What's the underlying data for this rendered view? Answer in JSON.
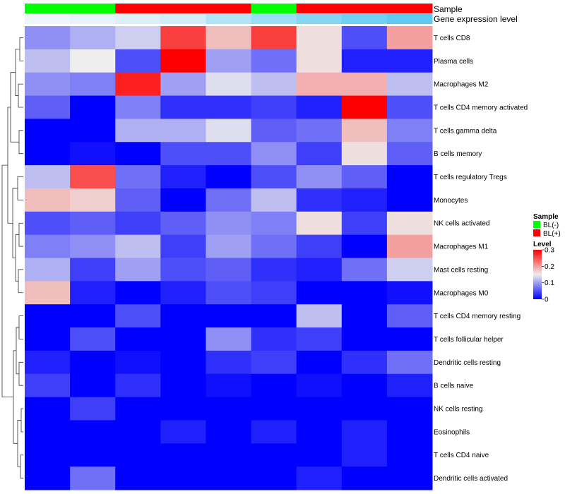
{
  "chart_data": {
    "type": "heatmap",
    "annotation_titles": {
      "sample": "Sample",
      "gene_expression": "Gene expression level"
    },
    "sample_groups": [
      "BL(-)",
      "BL(-)",
      "BL(+)",
      "BL(+)",
      "BL(+)",
      "BL(-)",
      "BL(+)",
      "BL(+)",
      "BL(+)"
    ],
    "gene_expression_levels": [
      0.0,
      0.05,
      0.12,
      0.2,
      0.4,
      0.55,
      0.7,
      0.82,
      0.95
    ],
    "rows": [
      "T cells CD8",
      "Plasma cells",
      "Macrophages M2",
      "T cells CD4 memory activated",
      "T cells gamma delta",
      "B cells memory",
      "T cells regulatory  Tregs",
      "Monocytes",
      "NK cells activated",
      "Macrophages M1",
      "Mast cells resting",
      "Macrophages M0",
      "T cells CD4 memory resting",
      "T cells follicular helper",
      "Dendritic cells resting",
      "B cells naive",
      "NK cells resting",
      "Eosinophils",
      "T cells CD4 naive",
      "Dendritic cells activated"
    ],
    "values": [
      [
        0.09,
        0.11,
        0.13,
        0.26,
        0.18,
        0.26,
        0.16,
        0.05,
        0.2
      ],
      [
        0.12,
        0.15,
        0.05,
        0.3,
        0.1,
        0.07,
        0.16,
        0.02,
        0.02
      ],
      [
        0.09,
        0.08,
        0.28,
        0.1,
        0.14,
        0.12,
        0.19,
        0.19,
        0.12
      ],
      [
        0.06,
        0.0,
        0.08,
        0.03,
        0.03,
        0.04,
        0.02,
        0.3,
        0.05
      ],
      [
        0.0,
        0.0,
        0.11,
        0.11,
        0.14,
        0.06,
        0.07,
        0.18,
        0.08
      ],
      [
        0.0,
        0.01,
        0.0,
        0.05,
        0.05,
        0.09,
        0.04,
        0.16,
        0.06
      ],
      [
        0.12,
        0.25,
        0.07,
        0.02,
        0.0,
        0.05,
        0.09,
        0.06,
        0.0
      ],
      [
        0.18,
        0.17,
        0.06,
        0.0,
        0.07,
        0.12,
        0.03,
        0.02,
        0.0
      ],
      [
        0.05,
        0.06,
        0.04,
        0.06,
        0.09,
        0.08,
        0.16,
        0.04,
        0.16
      ],
      [
        0.08,
        0.09,
        0.12,
        0.04,
        0.1,
        0.07,
        0.04,
        0.0,
        0.2
      ],
      [
        0.11,
        0.04,
        0.1,
        0.05,
        0.06,
        0.03,
        0.02,
        0.07,
        0.13
      ],
      [
        0.18,
        0.02,
        0.0,
        0.02,
        0.05,
        0.04,
        0.0,
        0.0,
        0.01
      ],
      [
        0.0,
        0.0,
        0.05,
        0.0,
        0.0,
        0.0,
        0.12,
        0.0,
        0.06
      ],
      [
        0.0,
        0.05,
        0.0,
        0.0,
        0.09,
        0.03,
        0.04,
        0.0,
        0.0
      ],
      [
        0.02,
        0.0,
        0.01,
        0.0,
        0.03,
        0.04,
        0.0,
        0.03,
        0.07
      ],
      [
        0.04,
        0.0,
        0.03,
        0.0,
        0.01,
        0.0,
        0.01,
        0.0,
        0.02
      ],
      [
        0.0,
        0.04,
        0.0,
        0.0,
        0.0,
        0.0,
        0.0,
        0.0,
        0.0
      ],
      [
        0.0,
        0.0,
        0.0,
        0.02,
        0.0,
        0.02,
        0.0,
        0.02,
        0.0
      ],
      [
        0.0,
        0.0,
        0.0,
        0.0,
        0.0,
        0.0,
        0.0,
        0.02,
        0.0
      ],
      [
        0.0,
        0.07,
        0.0,
        0.0,
        0.0,
        0.0,
        0.02,
        0.0,
        0.0
      ]
    ],
    "legend": {
      "sample_title": "Sample",
      "sample_entries": [
        {
          "label": "BL(-)",
          "color": "#00ff00"
        },
        {
          "label": "BL(+)",
          "color": "#ff0000"
        }
      ],
      "level_title": "Level",
      "level_ticks": [
        0.3,
        0.2,
        0.1,
        0
      ],
      "level_tick_labels": [
        "0.3",
        "0.2",
        "0.1",
        "0"
      ],
      "range": [
        0,
        0.3
      ],
      "placement": "right"
    },
    "color_scale": {
      "low": "#0000ff",
      "mid": "#eeeeee",
      "high": "#ff0000",
      "mid_value": 0.15
    },
    "annotation_colors": {
      "BL(-)": "#00ff00",
      "BL(+)": "#ff0000",
      "gene_low": "#eef6fb",
      "gene_high": "#56c8f0"
    }
  }
}
